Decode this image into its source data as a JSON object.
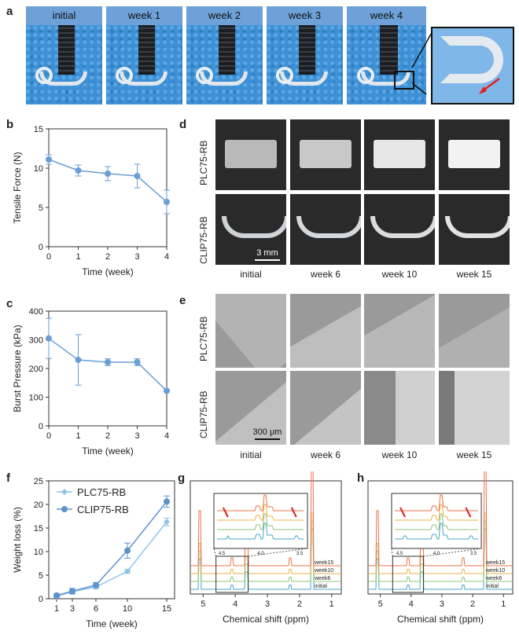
{
  "panel_letters": {
    "a": "a",
    "b": "b",
    "c": "c",
    "d": "d",
    "e": "e",
    "f": "f",
    "g": "g",
    "h": "h"
  },
  "panel_a": {
    "labels": [
      "initial",
      "week 1",
      "week 2",
      "week 3",
      "week 4"
    ]
  },
  "panel_d": {
    "row_labels": [
      "PLC75-RB",
      "CLIP75-RB"
    ],
    "scale_bar": "3 mm",
    "col_labels": [
      "initial",
      "week 6",
      "week 10",
      "week 15"
    ]
  },
  "panel_e": {
    "row_labels": [
      "PLC75-RB",
      "CLIP75-RB"
    ],
    "scale_bar": "300 μm",
    "col_labels": [
      "initial",
      "week 6",
      "week 10",
      "week 15"
    ]
  },
  "nmr": {
    "trace_labels": [
      "week15",
      "week10",
      "week6",
      "initial"
    ],
    "inset_ticks": [
      "4.5",
      "4.0",
      "3.5"
    ],
    "x_ticks": [
      "5",
      "4",
      "3",
      "2",
      "1"
    ],
    "xlabel": "Chemical shift (ppm)",
    "colors": [
      "#e8734a",
      "#e9b24a",
      "#8cc37a",
      "#4aa7c8"
    ]
  },
  "chart_data": [
    {
      "panel": "b",
      "type": "line",
      "title": "",
      "xlabel": "Time (week)",
      "ylabel": "Tensile Force (N)",
      "x": [
        0,
        1,
        2,
        3,
        4
      ],
      "values": [
        11.1,
        9.7,
        9.3,
        9.0,
        5.7
      ],
      "errors": [
        0.6,
        0.7,
        0.9,
        1.5,
        1.5
      ],
      "xlim": [
        0,
        4
      ],
      "ylim": [
        0,
        15
      ],
      "xticks": [
        "0",
        "1",
        "2",
        "3",
        "4"
      ],
      "yticks": [
        "0",
        "5",
        "10",
        "15"
      ],
      "color": "#6a9ed6"
    },
    {
      "panel": "c",
      "type": "line",
      "title": "",
      "xlabel": "Time (week)",
      "ylabel": "Burst Pressure (kPa)",
      "x": [
        0,
        1,
        2,
        3,
        4
      ],
      "values": [
        305,
        230,
        222,
        222,
        122
      ],
      "errors": [
        70,
        88,
        12,
        12,
        3
      ],
      "xlim": [
        0,
        4
      ],
      "ylim": [
        0,
        400
      ],
      "xticks": [
        "0",
        "1",
        "2",
        "3",
        "4"
      ],
      "yticks": [
        "0",
        "100",
        "200",
        "300",
        "400"
      ],
      "color": "#6a9ed6"
    },
    {
      "panel": "f",
      "type": "line",
      "title": "",
      "xlabel": "Time (week)",
      "ylabel": "Weight loss (%)",
      "x": [
        1,
        3,
        6,
        10,
        15
      ],
      "xlim": [
        0,
        16
      ],
      "ylim": [
        0,
        25
      ],
      "xticks": [
        "1",
        "3",
        "6",
        "10",
        "15"
      ],
      "yticks": [
        "0",
        "5",
        "10",
        "15",
        "20",
        "25"
      ],
      "series": [
        {
          "name": "PLC75-RB",
          "values": [
            0.5,
            1.5,
            2.5,
            5.8,
            16.3
          ],
          "errors": [
            0.3,
            0.4,
            0.4,
            0.4,
            0.8
          ],
          "color": "#8cc4e8",
          "marker": "diamond"
        },
        {
          "name": "CLIP75-RB",
          "values": [
            0.7,
            1.6,
            2.9,
            10.2,
            20.6
          ],
          "errors": [
            0.3,
            0.6,
            0.5,
            1.6,
            1.2
          ],
          "color": "#5d92cf",
          "marker": "circle"
        }
      ]
    }
  ]
}
